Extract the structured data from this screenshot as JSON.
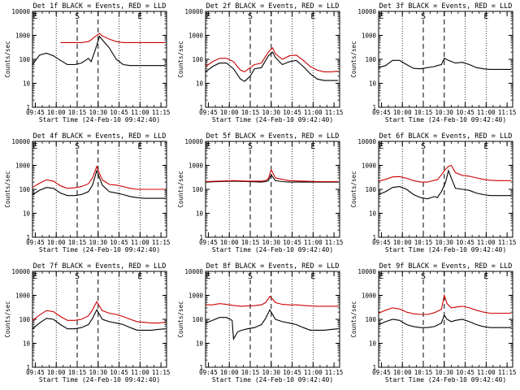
{
  "chart_data": [
    {
      "type": "line",
      "title": "Det 1f BLACK = Events, RED = LLD",
      "xlabel": "Start Time (24-Feb-10 09:42:40)",
      "ylabel": "Counts/sec",
      "xticks": [
        "09:45",
        "10:00",
        "10:15",
        "10:30",
        "10:45",
        "11:00",
        "11:15"
      ],
      "yticks": [
        "1",
        "10",
        "100",
        "1000",
        "10000"
      ],
      "ylim": [
        1,
        10000
      ],
      "yscale": "log",
      "markers": [
        "E",
        "S",
        "E"
      ],
      "series": [
        {
          "color": "#000000",
          "x": [
            0,
            5,
            10,
            15,
            20,
            25,
            30,
            35,
            40,
            42,
            45,
            48,
            50,
            55,
            60,
            65,
            70,
            75,
            80,
            85,
            90,
            95
          ],
          "y": [
            60,
            150,
            180,
            140,
            90,
            60,
            60,
            70,
            110,
            80,
            250,
            900,
            650,
            300,
            100,
            60,
            55,
            55,
            55,
            55,
            55,
            55
          ]
        },
        {
          "color": "#cc0000",
          "x": [
            20,
            25,
            30,
            35,
            40,
            42,
            45,
            48,
            50,
            55,
            60,
            65,
            70,
            75,
            80,
            85,
            90,
            95
          ],
          "y": [
            500,
            500,
            500,
            500,
            550,
            650,
            900,
            1200,
            950,
            700,
            550,
            500,
            500,
            500,
            500,
            500,
            500,
            500
          ]
        }
      ]
    },
    {
      "type": "line",
      "title": "Det 2f BLACK = Events, RED = LLD",
      "xlabel": "Start Time (24-Feb-10 09:42:40)",
      "ylabel": "Counts/sec",
      "xticks": [
        "09:45",
        "10:00",
        "10:15",
        "10:30",
        "10:45",
        "11:00",
        "11:15"
      ],
      "yticks": [
        "1",
        "10",
        "100",
        "1000",
        "10000"
      ],
      "ylim": [
        1,
        10000
      ],
      "yscale": "log",
      "markers": [
        "E",
        "S",
        "E"
      ],
      "series": [
        {
          "color": "#000000",
          "x": [
            0,
            5,
            10,
            15,
            20,
            25,
            28,
            32,
            35,
            40,
            45,
            48,
            50,
            55,
            60,
            65,
            70,
            75,
            80,
            85,
            90,
            95
          ],
          "y": [
            30,
            50,
            70,
            70,
            40,
            15,
            12,
            20,
            40,
            45,
            140,
            200,
            120,
            60,
            80,
            90,
            50,
            25,
            15,
            13,
            13,
            13
          ]
        },
        {
          "color": "#cc0000",
          "x": [
            0,
            5,
            10,
            15,
            20,
            25,
            28,
            32,
            35,
            40,
            45,
            48,
            50,
            55,
            60,
            65,
            70,
            75,
            80,
            85,
            90,
            95
          ],
          "y": [
            50,
            80,
            110,
            110,
            80,
            35,
            30,
            45,
            60,
            70,
            200,
            300,
            170,
            100,
            140,
            150,
            90,
            50,
            35,
            30,
            30,
            32
          ]
        }
      ]
    },
    {
      "type": "line",
      "title": "Det 3f BLACK = Events, RED = LLD",
      "xlabel": "Start Time (24-Feb-10 09:42:40)",
      "ylabel": "Counts/sec",
      "xticks": [
        "09:45",
        "10:00",
        "10:15",
        "10:30",
        "10:45",
        "11:00",
        "11:15"
      ],
      "yticks": [
        "1",
        "10",
        "100",
        "1000",
        "10000"
      ],
      "ylim": [
        1,
        10000
      ],
      "yscale": "log",
      "markers": [
        "E",
        "S",
        "E"
      ],
      "series": [
        {
          "color": "#000000",
          "x": [
            0,
            5,
            10,
            15,
            20,
            25,
            30,
            35,
            40,
            42,
            45,
            47,
            50,
            55,
            60,
            65,
            70,
            75,
            80,
            85,
            90,
            95
          ],
          "y": [
            45,
            55,
            90,
            90,
            60,
            42,
            40,
            45,
            50,
            55,
            60,
            110,
            90,
            70,
            75,
            60,
            45,
            40,
            38,
            38,
            38,
            38
          ]
        }
      ]
    },
    {
      "type": "line",
      "title": "Det 4f BLACK = Events, RED = LLD",
      "xlabel": "Start Time (24-Feb-10 09:42:40)",
      "ylabel": "Counts/sec",
      "xticks": [
        "09:45",
        "10:00",
        "10:15",
        "10:30",
        "10:45",
        "11:00",
        "11:15"
      ],
      "yticks": [
        "1",
        "10",
        "100",
        "1000",
        "10000"
      ],
      "ylim": [
        1,
        10000
      ],
      "yscale": "log",
      "markers": [
        "E",
        "S",
        "E"
      ],
      "series": [
        {
          "color": "#000000",
          "x": [
            0,
            5,
            10,
            15,
            20,
            25,
            30,
            35,
            40,
            43,
            46,
            48,
            50,
            55,
            60,
            65,
            70,
            75,
            80,
            85,
            90,
            95
          ],
          "y": [
            60,
            90,
            120,
            110,
            70,
            55,
            55,
            60,
            80,
            150,
            600,
            300,
            150,
            80,
            70,
            60,
            50,
            45,
            42,
            42,
            42,
            42
          ]
        },
        {
          "color": "#cc0000",
          "x": [
            0,
            5,
            10,
            15,
            20,
            25,
            30,
            35,
            40,
            43,
            46,
            48,
            50,
            55,
            60,
            65,
            70,
            75,
            80,
            85,
            90,
            95
          ],
          "y": [
            120,
            180,
            250,
            220,
            140,
            110,
            115,
            130,
            170,
            300,
            900,
            450,
            250,
            160,
            150,
            130,
            110,
            100,
            100,
            100,
            100,
            100
          ]
        }
      ]
    },
    {
      "type": "line",
      "title": "Det 5f BLACK = Events, RED = LLD",
      "xlabel": "Start Time (24-Feb-10 09:42:40)",
      "ylabel": "Counts/sec",
      "xticks": [
        "09:45",
        "10:00",
        "10:15",
        "10:30",
        "10:45",
        "11:00",
        "11:15"
      ],
      "yticks": [
        "1",
        "10",
        "100",
        "1000",
        "10000"
      ],
      "ylim": [
        1,
        10000
      ],
      "yscale": "log",
      "markers": [
        "E",
        "S",
        "E"
      ],
      "series": [
        {
          "color": "#000000",
          "x": [
            0,
            10,
            20,
            30,
            40,
            43,
            45,
            47,
            50,
            55,
            60,
            70,
            80,
            90,
            95
          ],
          "y": [
            200,
            210,
            220,
            210,
            200,
            210,
            230,
            400,
            230,
            210,
            200,
            200,
            200,
            200,
            200
          ]
        },
        {
          "color": "#cc0000",
          "x": [
            0,
            10,
            20,
            30,
            40,
            43,
            45,
            47,
            50,
            55,
            60,
            70,
            80,
            90,
            95
          ],
          "y": [
            210,
            220,
            230,
            220,
            220,
            230,
            280,
            650,
            300,
            260,
            230,
            220,
            210,
            210,
            210
          ]
        }
      ]
    },
    {
      "type": "line",
      "title": "Det 6f BLACK = Events, RED = LLD",
      "xlabel": "Start Time (24-Feb-10 09:42:40)",
      "ylabel": "Counts/sec",
      "xticks": [
        "09:45",
        "10:00",
        "10:15",
        "10:30",
        "10:45",
        "11:00",
        "11:15"
      ],
      "yticks": [
        "1",
        "10",
        "100",
        "1000",
        "10000"
      ],
      "ylim": [
        1,
        10000
      ],
      "yscale": "log",
      "markers": [
        "E",
        "S",
        "E"
      ],
      "series": [
        {
          "color": "#000000",
          "x": [
            0,
            5,
            10,
            15,
            20,
            25,
            30,
            35,
            40,
            42,
            45,
            48,
            50,
            52,
            55,
            60,
            65,
            70,
            75,
            80,
            85,
            90,
            95
          ],
          "y": [
            60,
            80,
            120,
            130,
            100,
            60,
            45,
            40,
            50,
            45,
            80,
            200,
            600,
            300,
            110,
            100,
            90,
            70,
            60,
            55,
            55,
            55,
            55
          ]
        },
        {
          "color": "#cc0000",
          "x": [
            0,
            5,
            10,
            15,
            20,
            25,
            30,
            35,
            40,
            42,
            45,
            48,
            50,
            52,
            55,
            60,
            65,
            70,
            75,
            80,
            85,
            90,
            95
          ],
          "y": [
            220,
            260,
            330,
            340,
            290,
            230,
            200,
            200,
            240,
            250,
            400,
            700,
            900,
            1000,
            500,
            380,
            350,
            300,
            260,
            240,
            230,
            230,
            230
          ]
        }
      ]
    },
    {
      "type": "line",
      "title": "Det 7f BLACK = Events, RED = LLD",
      "xlabel": "Start Time (24-Feb-10 09:42:40)",
      "ylabel": "Counts/sec",
      "xticks": [
        "09:45",
        "10:00",
        "10:15",
        "10:30",
        "10:45",
        "11:00",
        "11:15"
      ],
      "yticks": [
        "1",
        "10",
        "100",
        "1000",
        "10000"
      ],
      "ylim": [
        1,
        10000
      ],
      "yscale": "log",
      "markers": [
        "E",
        "S",
        "E"
      ],
      "series": [
        {
          "color": "#000000",
          "x": [
            0,
            5,
            10,
            15,
            20,
            25,
            30,
            35,
            40,
            43,
            46,
            48,
            50,
            55,
            60,
            65,
            70,
            75,
            80,
            85,
            90,
            95
          ],
          "y": [
            40,
            70,
            110,
            100,
            60,
            40,
            40,
            45,
            60,
            110,
            250,
            160,
            100,
            80,
            70,
            60,
            45,
            35,
            35,
            35,
            38,
            40
          ]
        },
        {
          "color": "#cc0000",
          "x": [
            0,
            5,
            10,
            15,
            20,
            25,
            30,
            35,
            40,
            43,
            46,
            48,
            50,
            55,
            60,
            65,
            70,
            75,
            80,
            85,
            90,
            95
          ],
          "y": [
            90,
            150,
            230,
            210,
            130,
            90,
            90,
            100,
            140,
            250,
            550,
            350,
            230,
            180,
            160,
            130,
            100,
            80,
            75,
            70,
            70,
            75
          ]
        }
      ]
    },
    {
      "type": "line",
      "title": "Det 8f BLACK = Events, RED = LLD",
      "xlabel": "Start Time (24-Feb-10 09:42:40)",
      "ylabel": "Counts/sec",
      "xticks": [
        "09:45",
        "10:00",
        "10:15",
        "10:30",
        "10:45",
        "11:00",
        "11:15"
      ],
      "yticks": [
        "1",
        "10",
        "100",
        "1000",
        "10000"
      ],
      "ylim": [
        1,
        10000
      ],
      "yscale": "log",
      "markers": [
        "E",
        "S",
        "E"
      ],
      "series": [
        {
          "color": "#000000",
          "x": [
            0,
            5,
            10,
            15,
            19,
            20,
            23,
            26,
            30,
            35,
            40,
            43,
            46,
            48,
            50,
            55,
            60,
            65,
            70,
            75,
            80,
            85,
            90,
            95
          ],
          "y": [
            70,
            90,
            120,
            120,
            90,
            15,
            30,
            35,
            40,
            45,
            60,
            110,
            250,
            160,
            100,
            80,
            70,
            60,
            45,
            35,
            35,
            35,
            38,
            40
          ]
        },
        {
          "color": "#cc0000",
          "x": [
            0,
            5,
            10,
            15,
            20,
            25,
            30,
            35,
            40,
            43,
            46,
            48,
            50,
            55,
            60,
            65,
            70,
            75,
            80,
            85,
            90,
            95
          ],
          "y": [
            400,
            400,
            450,
            420,
            380,
            350,
            360,
            370,
            400,
            500,
            900,
            700,
            500,
            420,
            400,
            400,
            380,
            360,
            350,
            350,
            350,
            350
          ]
        }
      ]
    },
    {
      "type": "line",
      "title": "Det 9f BLACK = Events, RED = LLD",
      "xlabel": "Start Time (24-Feb-10 09:42:40)",
      "ylabel": "Counts/sec",
      "xticks": [
        "09:45",
        "10:00",
        "10:15",
        "10:30",
        "10:45",
        "11:00",
        "11:15"
      ],
      "yticks": [
        "1",
        "10",
        "100",
        "1000",
        "10000"
      ],
      "ylim": [
        1,
        10000
      ],
      "yscale": "log",
      "markers": [
        "E",
        "S",
        "E"
      ],
      "series": [
        {
          "color": "#000000",
          "x": [
            0,
            5,
            10,
            15,
            20,
            25,
            30,
            35,
            40,
            45,
            47,
            49,
            52,
            55,
            60,
            65,
            70,
            75,
            80,
            85,
            90,
            95
          ],
          "y": [
            60,
            80,
            100,
            90,
            60,
            50,
            45,
            45,
            50,
            70,
            150,
            100,
            80,
            90,
            100,
            80,
            60,
            50,
            45,
            45,
            45,
            45
          ]
        },
        {
          "color": "#cc0000",
          "x": [
            0,
            5,
            10,
            15,
            20,
            25,
            30,
            35,
            40,
            45,
            47,
            49,
            52,
            55,
            60,
            65,
            70,
            75,
            80,
            85,
            90,
            95
          ],
          "y": [
            180,
            240,
            300,
            270,
            200,
            170,
            160,
            160,
            190,
            260,
            1000,
            450,
            300,
            320,
            350,
            300,
            240,
            200,
            180,
            180,
            180,
            180
          ]
        }
      ]
    }
  ]
}
